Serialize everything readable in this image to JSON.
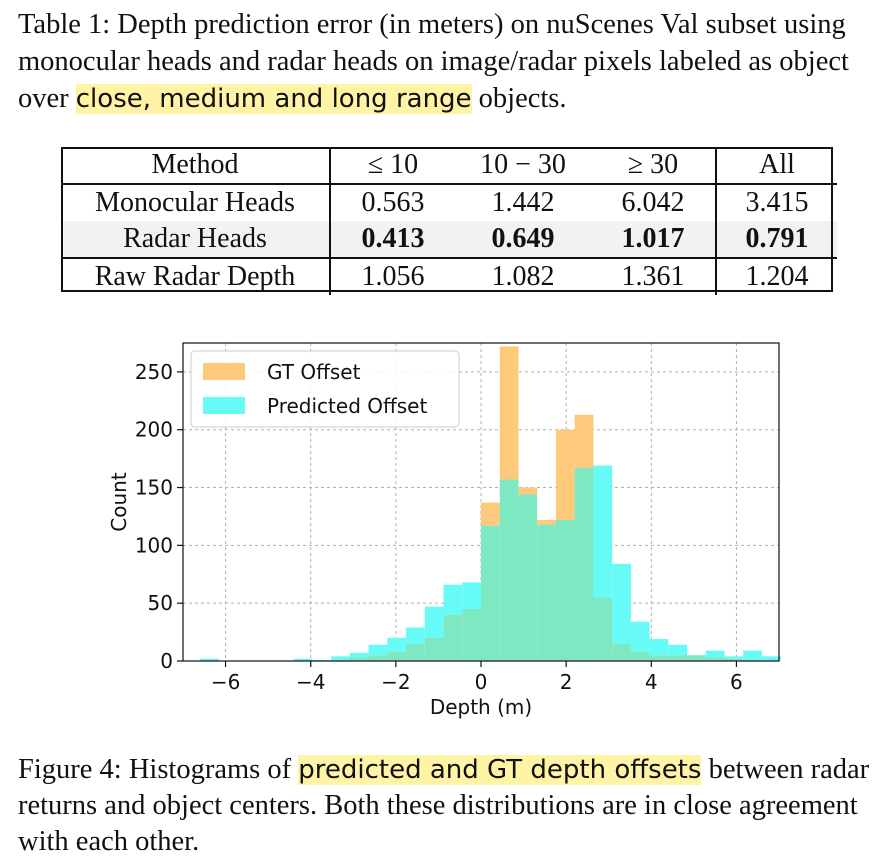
{
  "caption_top": {
    "before": "Table 1: Depth prediction error (in meters) on nuScenes Val subset using monocular heads and radar heads on image/radar pixels labeled as object over ",
    "highlight": "close, medium and long range",
    "after": " objects."
  },
  "table": {
    "headers": [
      "Method",
      "≤ 10",
      "10 − 30",
      "≥ 30",
      "All"
    ],
    "rows": [
      {
        "method": "Monocular Heads",
        "values": [
          "0.563",
          "1.442",
          "6.042",
          "3.415"
        ]
      },
      {
        "method": "Radar Heads",
        "values": [
          "0.413",
          "0.649",
          "1.017",
          "0.791"
        ]
      },
      {
        "method": "Raw Radar Depth",
        "values": [
          "1.056",
          "1.082",
          "1.361",
          "1.204"
        ]
      }
    ]
  },
  "chart_data": {
    "type": "histogram",
    "xlabel": "Depth (m)",
    "ylabel": "Count",
    "xlim": [
      -7,
      7
    ],
    "ylim": [
      0,
      275
    ],
    "xticks": [
      "−6",
      "−4",
      "−2",
      "0",
      "2",
      "4",
      "6"
    ],
    "yticks": [
      "0",
      "50",
      "100",
      "150",
      "200",
      "250"
    ],
    "grid": true,
    "legend_position": "top-left",
    "bin_width": 0.44,
    "bin_start": -6.6,
    "series": [
      {
        "name": "GT Offset",
        "color": "#fdc97a",
        "values": [
          0,
          0,
          0,
          0,
          0,
          0,
          0,
          1,
          3,
          5,
          8,
          15,
          20,
          40,
          45,
          137,
          272,
          150,
          122,
          200,
          213,
          55,
          15,
          8,
          5,
          5,
          5,
          3,
          2,
          1,
          0
        ]
      },
      {
        "name": "Predicted Offset",
        "color": "#66fbf6",
        "values": [
          2,
          0,
          0,
          0,
          0,
          2,
          1,
          4,
          7,
          14,
          20,
          29,
          47,
          66,
          68,
          117,
          157,
          144,
          118,
          122,
          167,
          169,
          84,
          34,
          19,
          14,
          5,
          9,
          4,
          9,
          4
        ]
      }
    ],
    "overlap_color": "#7de8c2"
  },
  "caption_bottom": {
    "before": "Figure 4: Histograms of ",
    "highlight": "predicted and GT depth offsets",
    "after": " between radar returns and object centers. Both these distributions are in close agreement with each other."
  }
}
